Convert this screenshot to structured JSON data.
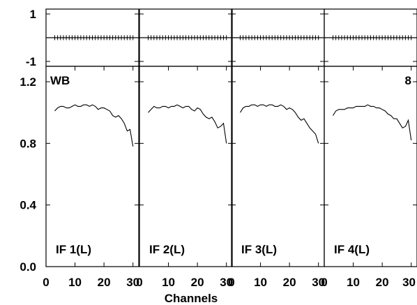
{
  "chart_data": {
    "type": "line",
    "xlabel": "Channels",
    "x_tick_labels": [
      "0",
      "10",
      "20",
      "30"
    ],
    "top_panel": {
      "ylim": [
        -1,
        1
      ],
      "y_tick_labels": [
        "1",
        "-1"
      ],
      "zero_line_value": 0
    },
    "bottom_panel": {
      "ylim": [
        0,
        1.3
      ],
      "y_tick_labels": [
        "1.2",
        "0.8",
        "0.4",
        "0.0"
      ]
    },
    "corner_labels": {
      "left": "WB",
      "right": "8"
    },
    "xlim": [
      0,
      32
    ],
    "panels": [
      {
        "label": "IF 1(L)",
        "x": [
          3,
          4,
          5,
          6,
          7,
          8,
          9,
          10,
          11,
          12,
          13,
          14,
          15,
          16,
          17,
          18,
          19,
          20,
          21,
          22,
          23,
          24,
          25,
          26,
          27,
          28,
          29,
          30
        ],
        "values": [
          1.01,
          1.03,
          1.04,
          1.04,
          1.03,
          1.03,
          1.04,
          1.05,
          1.04,
          1.04,
          1.05,
          1.05,
          1.04,
          1.05,
          1.04,
          1.02,
          1.03,
          1.03,
          1.02,
          1.01,
          0.98,
          0.97,
          0.98,
          0.96,
          0.93,
          0.88,
          0.89,
          0.78
        ]
      },
      {
        "label": "IF 2(L)",
        "x": [
          3,
          4,
          5,
          6,
          7,
          8,
          9,
          10,
          11,
          12,
          13,
          14,
          15,
          16,
          17,
          18,
          19,
          20,
          21,
          22,
          23,
          24,
          25,
          26,
          27,
          28,
          29,
          30
        ],
        "values": [
          1.0,
          1.02,
          1.04,
          1.03,
          1.03,
          1.04,
          1.04,
          1.03,
          1.04,
          1.04,
          1.05,
          1.04,
          1.03,
          1.04,
          1.04,
          1.02,
          1.01,
          1.03,
          1.02,
          0.99,
          0.97,
          0.96,
          0.97,
          0.94,
          0.9,
          0.91,
          0.93,
          0.8
        ]
      },
      {
        "label": "IF 3(L)",
        "x": [
          3,
          4,
          5,
          6,
          7,
          8,
          9,
          10,
          11,
          12,
          13,
          14,
          15,
          16,
          17,
          18,
          19,
          20,
          21,
          22,
          23,
          24,
          25,
          26,
          27,
          28,
          29,
          30
        ],
        "values": [
          1.0,
          1.03,
          1.04,
          1.04,
          1.05,
          1.05,
          1.04,
          1.05,
          1.05,
          1.04,
          1.05,
          1.05,
          1.04,
          1.04,
          1.05,
          1.04,
          1.02,
          1.03,
          1.02,
          1.0,
          0.97,
          0.95,
          0.96,
          0.93,
          0.9,
          0.88,
          0.86,
          0.8
        ]
      },
      {
        "label": "IF 4(L)",
        "x": [
          3,
          4,
          5,
          6,
          7,
          8,
          9,
          10,
          11,
          12,
          13,
          14,
          15,
          16,
          17,
          18,
          19,
          20,
          21,
          22,
          23,
          24,
          25,
          26,
          27,
          28,
          29,
          30
        ],
        "values": [
          0.98,
          1.01,
          1.02,
          1.02,
          1.02,
          1.03,
          1.03,
          1.03,
          1.04,
          1.04,
          1.04,
          1.04,
          1.05,
          1.04,
          1.04,
          1.03,
          1.03,
          1.02,
          1.01,
          0.99,
          0.98,
          0.96,
          0.96,
          0.93,
          0.9,
          0.91,
          0.95,
          0.82
        ]
      }
    ],
    "grid": false,
    "legend": "none"
  }
}
